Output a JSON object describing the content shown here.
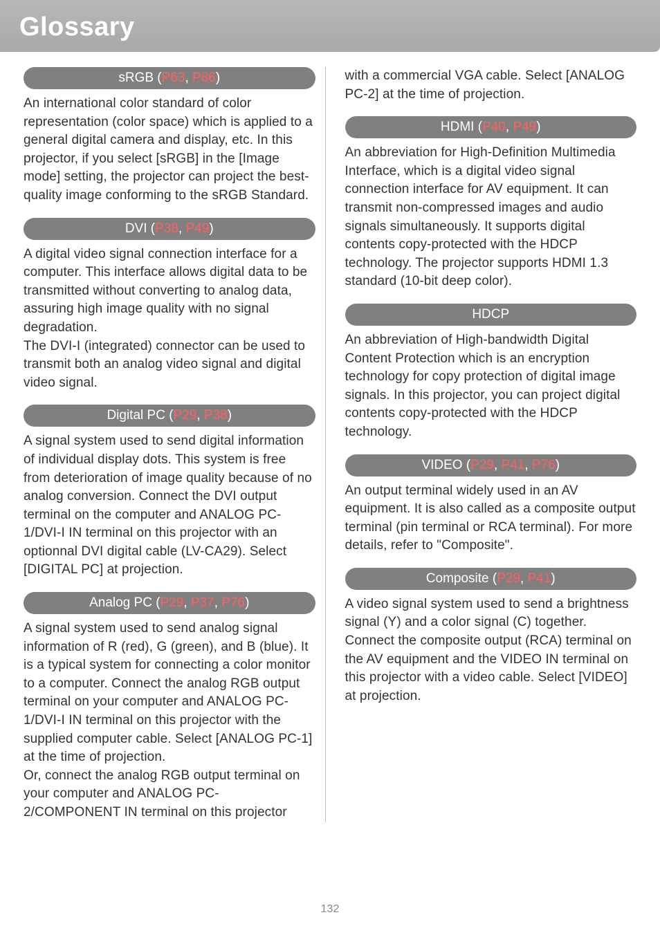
{
  "page": {
    "title": "Glossary",
    "number": "132"
  },
  "colors": {
    "header_bg": "#a8a8a8",
    "pill_bg": "#808080",
    "pill_text": "#ffffff",
    "ref_text": "#ff6060",
    "body_text": "#333333",
    "page_num": "#888888"
  },
  "entries": {
    "srgb": {
      "label_pre": "sRGB (",
      "ref1": "P63",
      "sep1": ", ",
      "ref2": "P86",
      "label_post": ")",
      "body": "An international color standard of color representation (color space) which is applied to a general digital camera and display, etc. In this projector, if you select [sRGB] in the [Image mode] setting, the projector can project the best-quality image conforming to the sRGB Standard."
    },
    "dvi": {
      "label_pre": "DVI (",
      "ref1": "P38",
      "sep1": ", ",
      "ref2": "P49",
      "label_post": ")",
      "body": "A digital video signal connection interface for a computer. This interface allows digital data to be transmitted without converting to analog data, assuring high image quality with no signal degradation.\nThe DVI-I (integrated) connector can be used to transmit both an analog video signal and digital video signal."
    },
    "digitalpc": {
      "label_pre": "Digital PC (",
      "ref1": "P29",
      "sep1": ", ",
      "ref2": "P38",
      "label_post": ")",
      "body": "A signal system used to send digital information of individual display dots. This system is free from deterioration of image quality because of no analog conversion. Connect the DVI output terminal on the computer and ANALOG PC-1/DVI-I IN terminal on this projector with an optionnal DVI digital cable (LV-CA29). Select [DIGITAL PC] at projection."
    },
    "analogpc": {
      "label_pre": "Analog PC (",
      "ref1": "P29",
      "sep1": ", ",
      "ref2": "P37",
      "sep2": ", ",
      "ref3": "P76",
      "label_post": ")",
      "body": "A signal system used to send analog signal information of R (red), G (green), and B (blue). It is a typical system for connecting a color monitor to a computer. Connect the analog RGB output terminal on your computer and ANALOG PC-1/DVI-I IN terminal on this projector with the supplied computer cable. Select [ANALOG PC-1] at the time of projection.\nOr, connect the analog RGB output terminal on your computer and ANALOG PC-2/COMPONENT IN terminal on this projector with a commercial VGA cable. Select [ANALOG PC-2] at the time of projection."
    },
    "analogpc_cont": {
      "body": "with a commercial VGA cable. Select [ANALOG PC-2] at the time of projection."
    },
    "hdmi": {
      "label_pre": "HDMI (",
      "ref1": "P40",
      "sep1": ", ",
      "ref2": "P49",
      "label_post": ")",
      "body": "An abbreviation for High-Definition Multimedia Interface, which is a digital video signal connection interface for AV equipment. It can transmit non-compressed images and audio signals simultaneously. It supports digital contents copy-protected with the HDCP technology. The projector supports HDMI 1.3 standard (10-bit deep color)."
    },
    "hdcp": {
      "label": "HDCP",
      "body": "An abbreviation of High-bandwidth Digital Content Protection which is an encryption technology for copy protection of digital image signals. In this projector, you can project digital contents copy-protected with the HDCP technology."
    },
    "video": {
      "label_pre": "VIDEO (",
      "ref1": "P29",
      "sep1": ", ",
      "ref2": "P41",
      "sep2": ", ",
      "ref3": "P76",
      "label_post": ")",
      "body": "An output terminal widely used in an AV equipment. It is also called as a composite output terminal (pin terminal or RCA terminal). For more details, refer to \"Composite\"."
    },
    "composite": {
      "label_pre": "Composite (",
      "ref1": "P29",
      "sep1": ", ",
      "ref2": "P41",
      "label_post": ")",
      "body": "A video signal system used to send a brightness signal (Y) and a color signal (C) together. Connect the composite output (RCA) terminal on the AV equipment and the VIDEO IN terminal on this projector with a video cable. Select [VIDEO] at projection."
    }
  },
  "left_analog_body": "A signal system used to send analog signal information of R (red), G (green), and B (blue). It is a typical system for connecting a color monitor to a computer. Connect the analog RGB output terminal on your computer and ANALOG PC-1/DVI-I IN terminal on this projector with the supplied computer cable. Select [ANALOG PC-1] at the time of projection.\nOr, connect the analog RGB output terminal on your computer and ANALOG PC-2/COMPONENT IN terminal on this projector"
}
